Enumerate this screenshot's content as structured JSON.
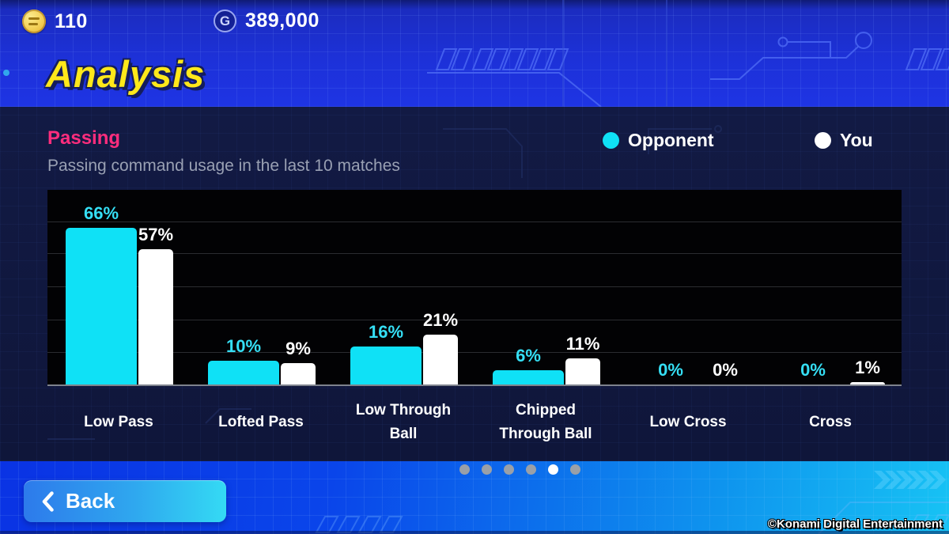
{
  "top_bar": {
    "coin_balance": "110",
    "gp_balance": "389,000"
  },
  "header": {
    "title": "Analysis"
  },
  "panel": {
    "section_title": "Passing",
    "subtitle": "Passing command usage in the last 10 matches",
    "legend": [
      {
        "label": "Opponent",
        "color": "#0fe1f6"
      },
      {
        "label": "You",
        "color": "#ffffff"
      }
    ]
  },
  "chart_data": {
    "type": "bar",
    "title": "Passing command usage in the last 10 matches",
    "categories": [
      "Low Pass",
      "Lofted Pass",
      "Low Through Ball",
      "Chipped Through Ball",
      "Low Cross",
      "Cross"
    ],
    "category_lines": [
      [
        "Low Pass"
      ],
      [
        "Lofted Pass"
      ],
      [
        "Low Through",
        "Ball"
      ],
      [
        "Chipped",
        "Through Ball"
      ],
      [
        "Low Cross"
      ],
      [
        "Cross"
      ]
    ],
    "series": [
      {
        "name": "Opponent",
        "color": "#0fe1f6",
        "values": [
          66,
          10,
          16,
          6,
          0,
          0
        ]
      },
      {
        "name": "You",
        "color": "#ffffff",
        "values": [
          57,
          9,
          21,
          11,
          0,
          1
        ]
      }
    ],
    "value_suffix": "%",
    "xlabel": "",
    "ylabel": "",
    "ylim": [
      0,
      82
    ],
    "grid": true,
    "legend_position": "top-right",
    "background": "#000000"
  },
  "pagination": {
    "total": 6,
    "active_index": 4
  },
  "footer": {
    "back_label": "Back",
    "copyright": "©Konami Digital Entertainment"
  },
  "colors": {
    "accent_cyan": "#0fe1f6",
    "accent_pink": "#ff2d7d",
    "title_yellow": "#ffe81a"
  }
}
